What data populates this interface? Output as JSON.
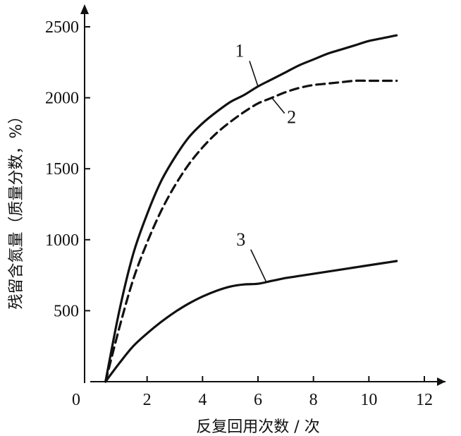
{
  "chart_data": {
    "type": "line",
    "xlabel": "反复回用次数 / 次",
    "ylabel": "残留含氮量（质量分数，%）",
    "xlim": [
      0,
      12
    ],
    "ylim": [
      0,
      2500
    ],
    "xticks": [
      0,
      2,
      4,
      6,
      8,
      10,
      12
    ],
    "yticks": [
      500,
      1000,
      1500,
      2000,
      2500
    ],
    "origin_label": "0",
    "grid": false,
    "series": [
      {
        "name": "1",
        "style": "solid-with-dash-dot-segments",
        "x": [
          0.5,
          1,
          1.5,
          2,
          2.5,
          3,
          3.5,
          4,
          4.5,
          5,
          5.5,
          6,
          6.5,
          7,
          7.5,
          8,
          8.5,
          9,
          9.5,
          10,
          10.5,
          11
        ],
        "y": [
          0,
          500,
          900,
          1180,
          1410,
          1580,
          1720,
          1820,
          1900,
          1970,
          2020,
          2080,
          2130,
          2180,
          2230,
          2270,
          2310,
          2340,
          2370,
          2400,
          2420,
          2440
        ]
      },
      {
        "name": "2",
        "style": "dashed",
        "x": [
          0.5,
          1,
          1.5,
          2,
          2.5,
          3,
          3.5,
          4,
          4.5,
          5,
          5.5,
          6,
          6.5,
          7,
          7.5,
          8,
          8.5,
          9,
          9.5,
          10,
          10.5,
          11
        ],
        "y": [
          0,
          380,
          720,
          980,
          1200,
          1380,
          1530,
          1650,
          1750,
          1830,
          1900,
          1960,
          2000,
          2040,
          2070,
          2090,
          2100,
          2110,
          2120,
          2120,
          2120,
          2120
        ]
      },
      {
        "name": "3",
        "style": "solid",
        "x": [
          0.5,
          1,
          1.5,
          2,
          2.5,
          3,
          3.5,
          4,
          4.5,
          5,
          5.5,
          6,
          6.5,
          7,
          7.5,
          8,
          8.5,
          9,
          9.5,
          10,
          10.5,
          11
        ],
        "y": [
          0,
          130,
          250,
          340,
          420,
          490,
          550,
          600,
          640,
          670,
          685,
          690,
          710,
          730,
          745,
          760,
          775,
          790,
          805,
          820,
          835,
          850
        ]
      }
    ],
    "labels": [
      {
        "text": "1",
        "series": "1",
        "at_x": 5.7,
        "anchor_x": 6.0
      },
      {
        "text": "2",
        "series": "2",
        "at_x": 6.9,
        "anchor_x": 6.5
      },
      {
        "text": "3",
        "series": "3",
        "at_x": 5.4,
        "anchor_x": 6.3
      }
    ],
    "colors": {
      "ink": "#111111",
      "background": "#ffffff"
    }
  }
}
